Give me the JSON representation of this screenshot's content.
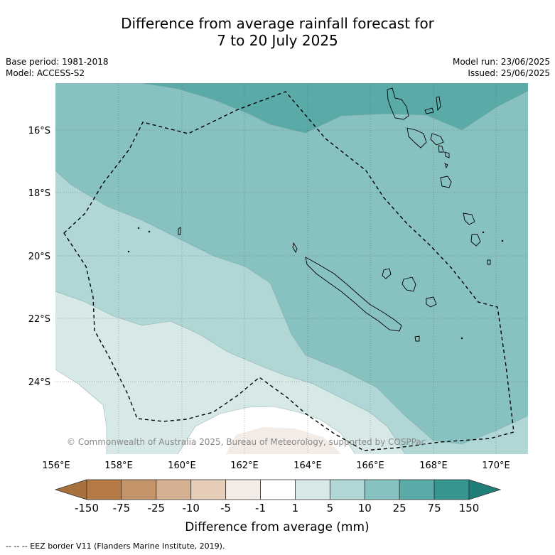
{
  "title": {
    "line1": "Difference from average rainfall forecast for",
    "line2": "7 to 20 July 2025"
  },
  "meta": {
    "base_period": "Base period: 1981-2018",
    "model": "Model: ACCESS-S2",
    "model_run": "Model run: 23/06/2025",
    "issued": "Issued: 25/06/2025"
  },
  "map": {
    "lon_ticks": [
      "156°E",
      "158°E",
      "160°E",
      "162°E",
      "164°E",
      "166°E",
      "168°E",
      "170°E"
    ],
    "lat_ticks": [
      "16°S",
      "18°S",
      "20°S",
      "22°S",
      "24°S"
    ],
    "copyright": "© Commonwealth of Australia 2025, Bureau of Meteorology, supported by COSPPac"
  },
  "legend": {
    "labels": [
      "-150",
      "-75",
      "-25",
      "-10",
      "-5",
      "-1",
      "1",
      "5",
      "10",
      "25",
      "75",
      "150"
    ],
    "colors": [
      "#a8703c",
      "#b57a44",
      "#c4956a",
      "#d4b090",
      "#e6cdb8",
      "#f3ebe6",
      "#ffffff",
      "#d7e9e7",
      "#b0d7d5",
      "#88c2c0",
      "#5aaaa8",
      "#36958f",
      "#1f7e77"
    ],
    "title": "Difference from average (mm)"
  },
  "footer": "--  --  -- EEZ border V11 (Flanders Marine Institute, 2019)."
}
